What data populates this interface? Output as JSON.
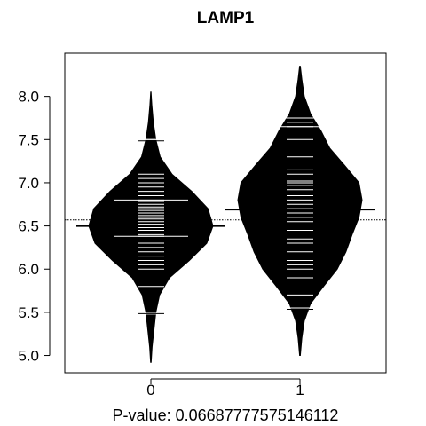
{
  "chart_data": {
    "type": "beanplot",
    "title": "LAMP1",
    "xlabel": "P-value: 0.06687777575146112",
    "ylabel": "",
    "categories": [
      "0",
      "1"
    ],
    "ylim": [
      4.8,
      8.5
    ],
    "y_ticks": [
      5.0,
      5.5,
      6.0,
      6.5,
      7.0,
      7.5,
      8.0
    ],
    "y_tick_labels": [
      "5.0",
      "5.5",
      "6.0",
      "6.5",
      "7.0",
      "7.5",
      "8.0"
    ],
    "overall_mean": 6.57,
    "grid": false,
    "legend": "none",
    "series": [
      {
        "category": "0",
        "mean": 6.5,
        "density": [
          [
            4.92,
            0.005
          ],
          [
            5.1,
            0.02
          ],
          [
            5.3,
            0.05
          ],
          [
            5.5,
            0.08
          ],
          [
            5.7,
            0.14
          ],
          [
            5.9,
            0.3
          ],
          [
            6.1,
            0.62
          ],
          [
            6.3,
            0.9
          ],
          [
            6.5,
            1.0
          ],
          [
            6.7,
            0.92
          ],
          [
            6.9,
            0.66
          ],
          [
            7.1,
            0.34
          ],
          [
            7.3,
            0.15
          ],
          [
            7.5,
            0.08
          ],
          [
            7.7,
            0.04
          ],
          [
            7.9,
            0.015
          ],
          [
            8.05,
            0.003
          ]
        ],
        "observations": [
          5.48,
          5.5,
          5.8,
          6.0,
          6.05,
          6.1,
          6.15,
          6.2,
          6.25,
          6.3,
          6.38,
          6.4,
          6.45,
          6.48,
          6.5,
          6.52,
          6.55,
          6.58,
          6.6,
          6.62,
          6.65,
          6.68,
          6.7,
          6.72,
          6.75,
          6.78,
          6.8,
          6.85,
          6.9,
          6.95,
          7.0,
          7.05,
          7.1,
          7.5
        ],
        "long_marks": [
          5.5,
          6.38,
          6.8,
          7.5
        ]
      },
      {
        "category": "1",
        "mean": 6.69,
        "density": [
          [
            5.0,
            0.005
          ],
          [
            5.2,
            0.03
          ],
          [
            5.4,
            0.07
          ],
          [
            5.6,
            0.17
          ],
          [
            5.8,
            0.38
          ],
          [
            6.0,
            0.6
          ],
          [
            6.2,
            0.74
          ],
          [
            6.4,
            0.84
          ],
          [
            6.6,
            0.95
          ],
          [
            6.8,
            1.0
          ],
          [
            7.0,
            0.95
          ],
          [
            7.2,
            0.72
          ],
          [
            7.4,
            0.48
          ],
          [
            7.6,
            0.34
          ],
          [
            7.8,
            0.17
          ],
          [
            8.0,
            0.07
          ],
          [
            8.2,
            0.03
          ],
          [
            8.35,
            0.005
          ]
        ],
        "observations": [
          5.55,
          5.7,
          5.9,
          6.0,
          6.05,
          6.1,
          6.2,
          6.3,
          6.35,
          6.45,
          6.55,
          6.6,
          6.65,
          6.7,
          6.75,
          6.8,
          6.85,
          6.92,
          6.97,
          7.0,
          7.02,
          7.1,
          7.15,
          7.3,
          7.5,
          7.65,
          7.7,
          7.75
        ],
        "long_marks": [
          5.55,
          7.65,
          7.75
        ]
      }
    ]
  }
}
